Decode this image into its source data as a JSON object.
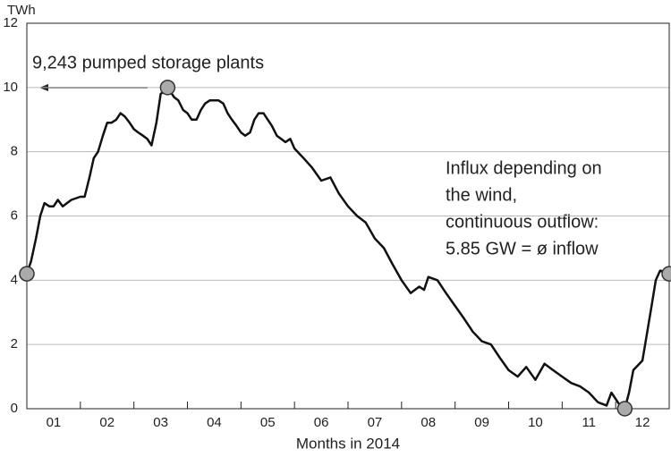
{
  "chart_data": {
    "type": "line",
    "ylabel": "TWh",
    "xlabel": "Months in 2014",
    "xlim": [
      0,
      12
    ],
    "ylim": [
      0,
      12
    ],
    "yticks": [
      0,
      2,
      4,
      6,
      8,
      10,
      12
    ],
    "xticks": [
      {
        "value": 0.5,
        "label": "01"
      },
      {
        "value": 1.5,
        "label": "02"
      },
      {
        "value": 2.5,
        "label": "03"
      },
      {
        "value": 3.5,
        "label": "04"
      },
      {
        "value": 4.5,
        "label": "05"
      },
      {
        "value": 5.5,
        "label": "06"
      },
      {
        "value": 6.5,
        "label": "07"
      },
      {
        "value": 7.5,
        "label": "08"
      },
      {
        "value": 8.5,
        "label": "09"
      },
      {
        "value": 9.5,
        "label": "10"
      },
      {
        "value": 10.5,
        "label": "11"
      },
      {
        "value": 11.5,
        "label": "12"
      }
    ],
    "grid": true,
    "x": [
      0,
      0.08,
      0.17,
      0.25,
      0.33,
      0.42,
      0.5,
      0.58,
      0.67,
      0.83,
      1,
      1.08,
      1.17,
      1.25,
      1.33,
      1.42,
      1.5,
      1.58,
      1.67,
      1.75,
      1.83,
      1.92,
      2,
      2.08,
      2.17,
      2.25,
      2.33,
      2.42,
      2.5,
      2.58,
      2.63,
      2.75,
      2.83,
      2.92,
      3,
      3.08,
      3.17,
      3.25,
      3.33,
      3.42,
      3.58,
      3.67,
      3.75,
      3.83,
      3.92,
      4,
      4.08,
      4.17,
      4.25,
      4.33,
      4.42,
      4.5,
      4.58,
      4.67,
      4.75,
      4.83,
      4.92,
      5,
      5.17,
      5.33,
      5.5,
      5.67,
      5.83,
      6,
      6.17,
      6.33,
      6.5,
      6.67,
      6.83,
      7,
      7.17,
      7.33,
      7.42,
      7.5,
      7.67,
      7.83,
      8,
      8.17,
      8.33,
      8.5,
      8.67,
      8.83,
      9,
      9.17,
      9.33,
      9.5,
      9.67,
      9.83,
      10,
      10.17,
      10.33,
      10.5,
      10.67,
      10.83,
      10.92,
      11,
      11.08,
      11.17,
      11.25,
      11.33,
      11.5,
      11.58,
      11.67,
      11.75,
      11.83,
      12
    ],
    "series": [
      {
        "color": "#111111",
        "values": [
          4.2,
          4.6,
          5.3,
          6.0,
          6.4,
          6.3,
          6.3,
          6.5,
          6.3,
          6.5,
          6.6,
          6.6,
          7.2,
          7.8,
          8.0,
          8.5,
          8.9,
          8.9,
          9.0,
          9.2,
          9.1,
          8.9,
          8.7,
          8.6,
          8.5,
          8.4,
          8.2,
          8.9,
          9.8,
          9.9,
          10.0,
          9.7,
          9.6,
          9.3,
          9.2,
          9.0,
          9.0,
          9.3,
          9.5,
          9.6,
          9.6,
          9.5,
          9.2,
          9.0,
          8.8,
          8.6,
          8.5,
          8.6,
          9.0,
          9.2,
          9.2,
          9.0,
          8.8,
          8.5,
          8.4,
          8.3,
          8.4,
          8.1,
          7.8,
          7.5,
          7.1,
          7.2,
          6.7,
          6.3,
          6.0,
          5.8,
          5.3,
          5.0,
          4.5,
          4.0,
          3.6,
          3.8,
          3.7,
          4.1,
          4.0,
          3.6,
          3.2,
          2.8,
          2.4,
          2.1,
          2.0,
          1.6,
          1.2,
          1.0,
          1.3,
          0.9,
          1.4,
          1.2,
          1.0,
          0.8,
          0.7,
          0.5,
          0.2,
          0.1,
          0.5,
          0.3,
          0.1,
          0.0,
          0.5,
          1.2,
          1.5,
          2.3,
          3.2,
          4.0,
          4.3,
          4.2
        ]
      }
    ],
    "markers": {
      "color": "#aaaaaa",
      "x": [
        0,
        2.63,
        11.17,
        12
      ],
      "y": [
        4.2,
        10,
        0,
        4.2
      ]
    },
    "annotations": [
      "9,243 pumped storage plants",
      "Influx depending on",
      "the wind,",
      "continuous outflow:",
      "5.85 GW = ø inflow"
    ]
  }
}
